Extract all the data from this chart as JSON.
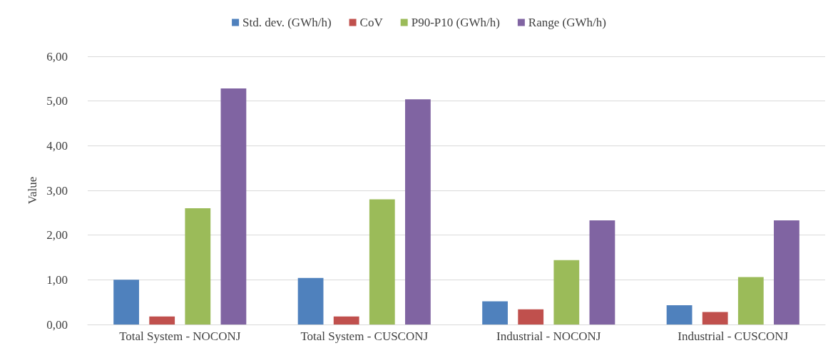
{
  "chart_data": {
    "type": "bar",
    "ylabel": "Value",
    "categories": [
      "Total System - NOCONJ",
      "Total System - CUSCONJ",
      "Industrial - NOCONJ",
      "Industrial - CUSCONJ"
    ],
    "series": [
      {
        "name": "Std. dev. (GWh/h)",
        "color": "#4f81bd",
        "values": [
          1.0,
          1.04,
          0.52,
          0.43
        ]
      },
      {
        "name": "CoV",
        "color": "#c0504d",
        "values": [
          0.18,
          0.18,
          0.34,
          0.28
        ]
      },
      {
        "name": "P90-P10 (GWh/h)",
        "color": "#9bbb59",
        "values": [
          2.6,
          2.8,
          1.44,
          1.06
        ]
      },
      {
        "name": "Range (GWh/h)",
        "color": "#8064a2",
        "values": [
          5.28,
          5.04,
          2.33,
          2.33
        ]
      }
    ],
    "ylim": [
      0,
      6
    ],
    "yticks": [
      {
        "value": 0,
        "label": "0,00"
      },
      {
        "value": 1,
        "label": "1,00"
      },
      {
        "value": 2,
        "label": "2,00"
      },
      {
        "value": 3,
        "label": "3,00"
      },
      {
        "value": 4,
        "label": "4,00"
      },
      {
        "value": 5,
        "label": "5,00"
      },
      {
        "value": 6,
        "label": "6,00"
      }
    ],
    "grid": "y",
    "legend": "top"
  }
}
